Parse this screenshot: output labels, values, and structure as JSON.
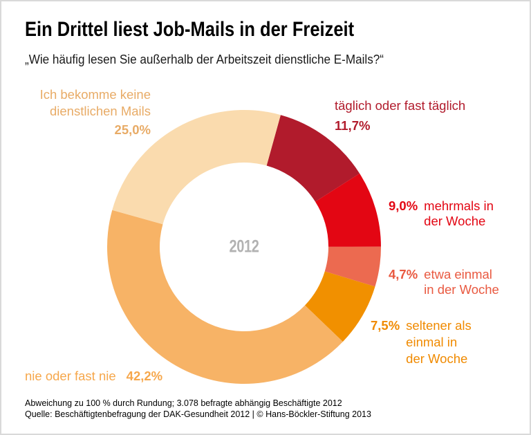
{
  "header": {
    "title": "Ein Drittel liest Job-Mails in der Freizeit",
    "subtitle": "„Wie häufig lesen Sie außerhalb der Arbeitszeit dienstliche E-Mails?“"
  },
  "chart_data": {
    "type": "pie",
    "variant": "donut",
    "title": "Ein Drittel liest Job-Mails in der Freizeit",
    "question": "Wie häufig lesen Sie außerhalb der Arbeitszeit dienstliche E-Mails?",
    "unit": "%",
    "center_label": "2012",
    "center_label_color": "#b2b2b2",
    "start_angle_deg": 15.5,
    "legend_position": "callouts-around-donut",
    "segments": [
      {
        "id": "taeglich",
        "label": "täglich oder fast täglich",
        "value": 11.7,
        "value_label": "11,7%",
        "color": "#b11b2c",
        "label_color": "#b11b2c"
      },
      {
        "id": "mehrmals",
        "label": "mehrmals in der Woche",
        "value": 9.0,
        "value_label": "9,0%",
        "color": "#e30613",
        "label_color": "#e30613"
      },
      {
        "id": "etwa",
        "label": "etwa einmal in der Woche",
        "value": 4.7,
        "value_label": "4,7%",
        "color": "#ec6a50",
        "label_color": "#e95940"
      },
      {
        "id": "seltener",
        "label": "seltener als einmal in der Woche",
        "value": 7.5,
        "value_label": "7,5%",
        "color": "#f19000",
        "label_color": "#f08a00"
      },
      {
        "id": "nie",
        "label": "nie oder fast nie",
        "value": 42.2,
        "value_label": "42,2%",
        "color": "#f7b366",
        "label_color": "#f6a74b"
      },
      {
        "id": "keine",
        "label": "Ich bekomme keine dienstlichen Mails",
        "value": 25.0,
        "value_label": "25,0%",
        "color": "#fadbae",
        "label_color": "#e8ab66"
      }
    ]
  },
  "callouts": {
    "keine": {
      "lines": [
        "Ich bekomme keine",
        "dienstlichen Mails"
      ],
      "pct": "25,0%"
    },
    "taeglich": {
      "lines": [
        "täglich oder fast täglich"
      ],
      "pct": "11,7%"
    },
    "mehrmals": {
      "pct": "9,0%",
      "lines": [
        "mehrmals in",
        "der Woche"
      ]
    },
    "etwa": {
      "pct": "4,7%",
      "lines": [
        "etwa einmal",
        "in der Woche"
      ]
    },
    "seltener": {
      "pct": "7,5%",
      "lines": [
        "seltener als",
        "einmal in",
        "der Woche"
      ]
    },
    "nie": {
      "lines": [
        "nie oder fast nie"
      ],
      "pct": "42,2%"
    }
  },
  "footer": {
    "note": "Abweichung zu 100 % durch Rundung; 3.078 befragte abhängig Beschäftigte 2012",
    "source": "Quelle: Beschäftigtenbefragung der DAK-Gesundheit 2012 | © Hans-Böckler-Stiftung 2013"
  }
}
